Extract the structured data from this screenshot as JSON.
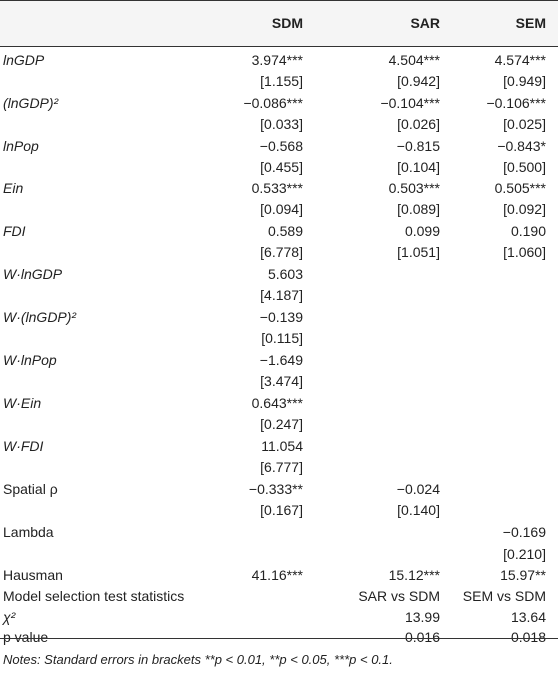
{
  "header": {
    "col1": "SDM",
    "col2": "SAR",
    "col3": "SEM"
  },
  "rows": [
    {
      "label": "lnGDP",
      "italic": true,
      "v": [
        "3.974***",
        "4.504***",
        "4.574***"
      ]
    },
    {
      "label": "",
      "v": [
        "[1.155]",
        "[0.942]",
        "[0.949]"
      ]
    },
    {
      "label": "(lnGDP)²",
      "italic": true,
      "v": [
        "−0.086***",
        "−0.104***",
        "−0.106***"
      ]
    },
    {
      "label": "",
      "v": [
        "[0.033]",
        "[0.026]",
        "[0.025]"
      ]
    },
    {
      "label": "lnPop",
      "italic": true,
      "v": [
        "−0.568",
        "−0.815",
        "−0.843*"
      ]
    },
    {
      "label": "",
      "v": [
        "[0.455]",
        "[0.104]",
        "[0.500]"
      ]
    },
    {
      "label": "Ein",
      "italic": true,
      "v": [
        "0.533***",
        "0.503***",
        "0.505***"
      ]
    },
    {
      "label": "",
      "v": [
        "[0.094]",
        "[0.089]",
        "[0.092]"
      ]
    },
    {
      "label": "FDI",
      "italic": true,
      "v": [
        "0.589",
        "0.099",
        "0.190"
      ]
    },
    {
      "label": "",
      "v": [
        "[6.778]",
        "[1.051]",
        "[1.060]"
      ]
    },
    {
      "label": "W·lnGDP",
      "italic": true,
      "v": [
        "5.603",
        "",
        ""
      ]
    },
    {
      "label": "",
      "v": [
        "[4.187]",
        "",
        ""
      ]
    },
    {
      "label": "W·(lnGDP)²",
      "italic": true,
      "v": [
        "−0.139",
        "",
        ""
      ]
    },
    {
      "label": "",
      "v": [
        "[0.115]",
        "",
        ""
      ]
    },
    {
      "label": "W·lnPop",
      "italic": true,
      "v": [
        "−1.649",
        "",
        ""
      ]
    },
    {
      "label": "",
      "v": [
        "[3.474]",
        "",
        ""
      ]
    },
    {
      "label": "W·Ein",
      "italic": true,
      "v": [
        "0.643***",
        "",
        ""
      ]
    },
    {
      "label": "",
      "v": [
        "[0.247]",
        "",
        ""
      ]
    },
    {
      "label": "W·FDI",
      "italic": true,
      "v": [
        "11.054",
        "",
        ""
      ]
    },
    {
      "label": "",
      "v": [
        "[6.777]",
        "",
        ""
      ]
    },
    {
      "label": "Spatial ρ",
      "italic": false,
      "v": [
        "−0.333**",
        "−0.024",
        ""
      ]
    },
    {
      "label": "",
      "v": [
        "[0.167]",
        "[0.140]",
        ""
      ]
    },
    {
      "label": "Lambda",
      "italic": false,
      "v": [
        "",
        "",
        "−0.169"
      ]
    },
    {
      "label": "",
      "v": [
        "",
        "",
        "[0.210]"
      ]
    },
    {
      "label": "Hausman",
      "italic": false,
      "v": [
        "41.16***",
        "15.12***",
        "15.97**"
      ]
    },
    {
      "label": "Model selection test statistics",
      "italic": false,
      "v": [
        "",
        "SAR vs SDM",
        "SEM vs SDM"
      ]
    },
    {
      "label": "χ²",
      "italic": true,
      "v": [
        "",
        "13.99",
        "13.64"
      ]
    },
    {
      "label": "p value",
      "italic": false,
      "v": [
        "",
        "0.016",
        "0.018"
      ]
    }
  ],
  "notes": "Notes: Standard errors in brackets **p < 0.01, **p < 0.05, ***p < 0.1."
}
